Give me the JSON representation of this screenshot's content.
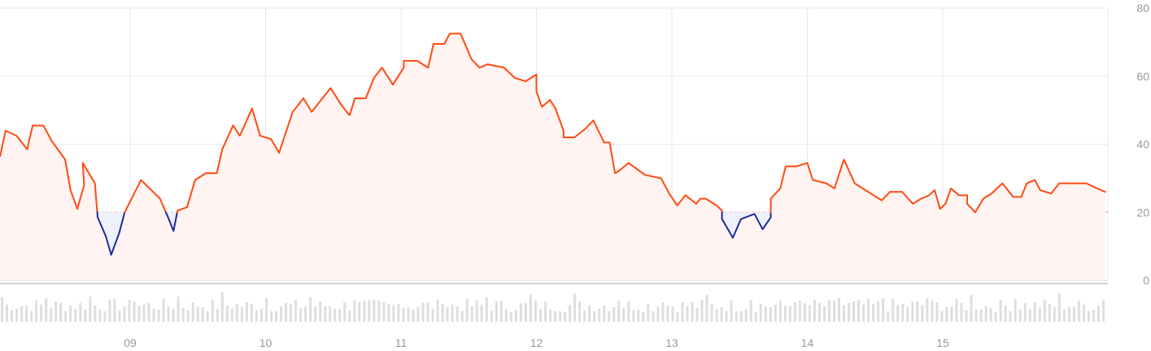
{
  "chart_data": {
    "type": "line",
    "title": "",
    "xlabel": "",
    "ylabel": "",
    "ylim": [
      0,
      80
    ],
    "y_ticks": [
      "80",
      "60",
      "40",
      "20",
      "0"
    ],
    "y_tick_values": [
      80,
      60,
      40,
      20,
      0
    ],
    "x_ticks": [
      "09",
      "10",
      "11",
      "12",
      "13",
      "14",
      "15"
    ],
    "x_tick_values": [
      1,
      2,
      3,
      4,
      5,
      6,
      7
    ],
    "xlim": [
      0.04,
      8.22
    ],
    "reference_level": 20,
    "grid": true,
    "colors": {
      "line_above": "#ff4a14",
      "line_below": "#1c2b9a",
      "fill_above": "#fff4f1",
      "fill_below": "#eef0fb",
      "grid": "#e8e8e8",
      "reference": "#e8a592",
      "volume": "#dedede",
      "axis_text": "#999999"
    },
    "series": [
      {
        "values": [
          [
            0.04,
            36.5
          ],
          [
            0.08,
            44
          ],
          [
            0.16,
            42.5
          ],
          [
            0.24,
            38.5
          ],
          [
            0.28,
            45.5
          ],
          [
            0.36,
            45.5
          ],
          [
            0.42,
            41
          ],
          [
            0.52,
            35.5
          ],
          [
            0.56,
            26.5
          ],
          [
            0.61,
            21
          ],
          [
            0.66,
            28
          ],
          [
            0.65,
            34.5
          ],
          [
            0.74,
            28.5
          ],
          [
            0.76,
            18.5
          ],
          [
            0.82,
            13
          ],
          [
            0.86,
            7.5
          ],
          [
            0.92,
            14
          ],
          [
            0.96,
            20
          ],
          [
            1.08,
            29.5
          ],
          [
            1.22,
            24
          ],
          [
            1.28,
            18.5
          ],
          [
            1.32,
            14.5
          ],
          [
            1.35,
            20.5
          ],
          [
            1.42,
            21.5
          ],
          [
            1.48,
            29.5
          ],
          [
            1.56,
            31.5
          ],
          [
            1.64,
            31.5
          ],
          [
            1.68,
            38.5
          ],
          [
            1.76,
            45.5
          ],
          [
            1.81,
            42.5
          ],
          [
            1.9,
            50.5
          ],
          [
            1.96,
            42.5
          ],
          [
            2.04,
            41.5
          ],
          [
            2.1,
            37.5
          ],
          [
            2.2,
            49.5
          ],
          [
            2.28,
            53.5
          ],
          [
            2.34,
            49.5
          ],
          [
            2.42,
            53.5
          ],
          [
            2.48,
            56.5
          ],
          [
            2.56,
            51.5
          ],
          [
            2.62,
            48.5
          ],
          [
            2.66,
            53.5
          ],
          [
            2.74,
            53.5
          ],
          [
            2.8,
            59.5
          ],
          [
            2.86,
            62.5
          ],
          [
            2.94,
            57.5
          ],
          [
            3.02,
            62.5
          ],
          [
            3.02,
            64.5
          ],
          [
            3.12,
            64.5
          ],
          [
            3.2,
            62.5
          ],
          [
            3.24,
            69.5
          ],
          [
            3.32,
            69.5
          ],
          [
            3.36,
            72.5
          ],
          [
            3.44,
            72.5
          ],
          [
            3.52,
            65
          ],
          [
            3.58,
            62.5
          ],
          [
            3.64,
            63.5
          ],
          [
            3.76,
            62.5
          ],
          [
            3.84,
            59.5
          ],
          [
            3.92,
            58.5
          ],
          [
            4.0,
            60.5
          ],
          [
            4.0,
            55.5
          ],
          [
            4.04,
            51
          ],
          [
            4.1,
            53
          ],
          [
            4.14,
            50.5
          ],
          [
            4.2,
            44
          ],
          [
            4.2,
            42
          ],
          [
            4.28,
            42
          ],
          [
            4.36,
            44.5
          ],
          [
            4.42,
            47
          ],
          [
            4.5,
            40.5
          ],
          [
            4.54,
            40.5
          ],
          [
            4.58,
            31.5
          ],
          [
            4.62,
            32.5
          ],
          [
            4.68,
            34.5
          ],
          [
            4.8,
            31
          ],
          [
            4.92,
            30
          ],
          [
            4.98,
            25.5
          ],
          [
            5.04,
            22
          ],
          [
            5.1,
            25
          ],
          [
            5.18,
            22.5
          ],
          [
            5.21,
            24
          ],
          [
            5.25,
            24
          ],
          [
            5.33,
            22
          ],
          [
            5.37,
            20.5
          ],
          [
            5.37,
            18
          ],
          [
            5.45,
            12.5
          ],
          [
            5.51,
            18
          ],
          [
            5.61,
            19.5
          ],
          [
            5.67,
            15
          ],
          [
            5.73,
            18.5
          ],
          [
            5.73,
            24
          ],
          [
            5.8,
            27
          ],
          [
            5.84,
            33.5
          ],
          [
            5.92,
            33.5
          ],
          [
            6.0,
            34.5
          ],
          [
            6.04,
            29.5
          ],
          [
            6.14,
            28.5
          ],
          [
            6.2,
            27
          ],
          [
            6.27,
            35.5
          ],
          [
            6.35,
            28.5
          ],
          [
            6.47,
            25.5
          ],
          [
            6.55,
            23.5
          ],
          [
            6.61,
            26
          ],
          [
            6.7,
            26
          ],
          [
            6.78,
            22.5
          ],
          [
            6.84,
            24
          ],
          [
            6.9,
            25
          ],
          [
            6.94,
            26.5
          ],
          [
            6.98,
            21
          ],
          [
            7.02,
            22.5
          ],
          [
            7.06,
            27
          ],
          [
            7.12,
            25
          ],
          [
            7.18,
            25
          ],
          [
            7.18,
            22.5
          ],
          [
            7.24,
            20
          ],
          [
            7.3,
            24
          ],
          [
            7.36,
            25.5
          ],
          [
            7.44,
            28.5
          ],
          [
            7.52,
            24.5
          ],
          [
            7.58,
            24.5
          ],
          [
            7.62,
            28.5
          ],
          [
            7.68,
            29.5
          ],
          [
            7.72,
            26.5
          ],
          [
            7.8,
            25.5
          ],
          [
            7.86,
            28.5
          ],
          [
            8.0,
            28.5
          ],
          [
            8.06,
            28.5
          ],
          [
            8.14,
            27
          ],
          [
            8.2,
            26
          ]
        ]
      }
    ]
  }
}
